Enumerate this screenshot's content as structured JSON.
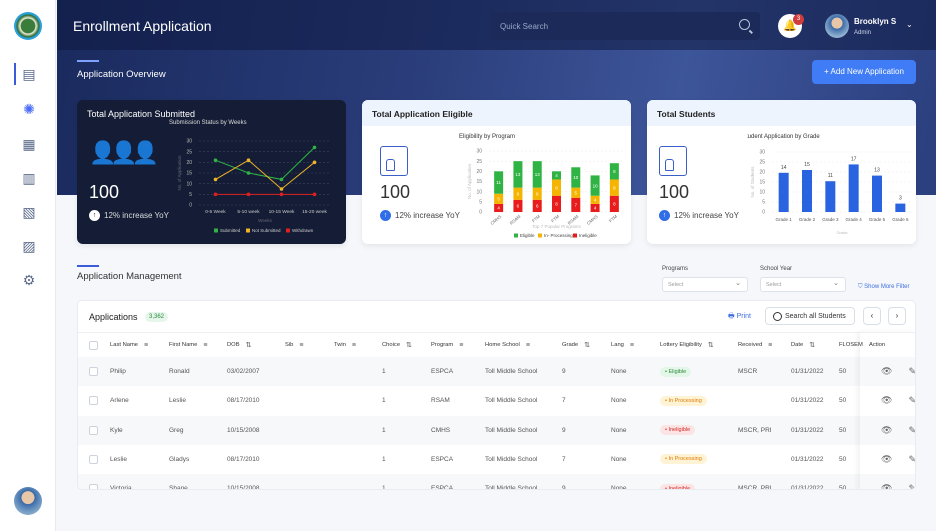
{
  "header": {
    "title": "Enrollment Application",
    "search_placeholder": "Quick Search",
    "notifications": "3",
    "user_name": "Brooklyn S",
    "user_role": "Admin"
  },
  "sidebar": {
    "items": [
      {
        "icon": "dashboard-icon",
        "glyph": "▤"
      },
      {
        "icon": "sun-icon",
        "glyph": "✺"
      },
      {
        "icon": "calendar-icon",
        "glyph": "▦"
      },
      {
        "icon": "checklist-icon",
        "glyph": "▥"
      },
      {
        "icon": "document-user-icon",
        "glyph": "▧"
      },
      {
        "icon": "inbox-icon",
        "glyph": "▨"
      },
      {
        "icon": "gear-icon",
        "glyph": "⚙"
      }
    ]
  },
  "overview": {
    "title": "Application Overview",
    "add_button": "+ Add New Application"
  },
  "cards": [
    {
      "title": "Total Application Submitted",
      "value": "100",
      "increase": "12% increase YoY"
    },
    {
      "title": "Total Application Eligible",
      "value": "100",
      "increase": "12% increase YoY"
    },
    {
      "title": "Total Students",
      "value": "100",
      "increase": "12% increase YoY"
    }
  ],
  "chart_data": [
    {
      "type": "line",
      "title": "Submission Status by Weeks",
      "xlabel": "Weeks",
      "ylabel": "No. of Application",
      "ylim": [
        0,
        30
      ],
      "yticks": [
        0,
        5,
        10,
        15,
        20,
        25,
        30
      ],
      "categories": [
        "0-5 Week",
        "5-10 week",
        "10-15 Week",
        "15-20 week"
      ],
      "series": [
        {
          "name": "Submitted",
          "color": "#2fb344",
          "values": [
            21,
            15,
            12,
            27
          ]
        },
        {
          "name": "Not Submitted",
          "color": "#f0b429",
          "values": [
            12,
            21,
            7.5,
            20
          ]
        },
        {
          "name": "Withdrawn",
          "color": "#e02020",
          "values": [
            5,
            5,
            5,
            5
          ]
        }
      ],
      "legend": "bottom"
    },
    {
      "type": "bar",
      "stacked": true,
      "title": "Eligibility by Program",
      "xlabel": "Top 7 Popular Programs",
      "ylabel": "No. of Application",
      "ylim": [
        0,
        30
      ],
      "yticks": [
        0,
        5,
        10,
        15,
        20,
        25,
        30
      ],
      "categories": [
        "CMHS",
        "RSAM",
        "FTM",
        "FTM",
        "RSAM",
        "CMHS",
        "FTM"
      ],
      "series": [
        {
          "name": "Ineligible",
          "color": "#e81c1c",
          "values": [
            4,
            6,
            6,
            8,
            7,
            4,
            8
          ]
        },
        {
          "name": "In- Processing",
          "color": "#f5b400",
          "values": [
            5,
            6,
            6,
            8,
            5,
            4,
            8
          ]
        },
        {
          "name": "Eligible",
          "color": "#2fb344",
          "values": [
            11,
            13,
            13,
            4,
            10,
            10,
            8
          ]
        }
      ],
      "legend": "bottom"
    },
    {
      "type": "bar",
      "title": "Student Application by Grade",
      "xlabel": "Grade",
      "ylabel": "No. of Students",
      "ylim": [
        0,
        30
      ],
      "yticks": [
        0,
        5,
        10,
        15,
        20,
        25,
        30
      ],
      "categories": [
        "Grade 1",
        "Grade 2",
        "Grade 3",
        "Grade 4",
        "Grade 5",
        "Grade 6"
      ],
      "values": [
        14,
        15,
        11,
        17,
        13,
        3
      ],
      "color": "#2a63e0"
    }
  ],
  "management": {
    "title": "Application Management",
    "programs_label": "Programs",
    "programs_value": "Select",
    "year_label": "School Year",
    "year_value": "Select",
    "more_filter": "Show More Filter"
  },
  "table": {
    "title": "Applications",
    "count": "3,362",
    "print": "Print",
    "search": "Search all Students",
    "prev": "‹",
    "next": "›",
    "columns": [
      {
        "label": "Last Name",
        "sym": "≡"
      },
      {
        "label": "First Name",
        "sym": "≡"
      },
      {
        "label": "DOB",
        "sym": "⇅"
      },
      {
        "label": "Sib",
        "sym": "≡"
      },
      {
        "label": "Twin",
        "sym": "≡"
      },
      {
        "label": "Choice",
        "sym": "⇅"
      },
      {
        "label": "Program",
        "sym": "≡"
      },
      {
        "label": "Home School",
        "sym": "≡"
      },
      {
        "label": "Grade",
        "sym": "⇅"
      },
      {
        "label": "Lang",
        "sym": "≡"
      },
      {
        "label": "Lottery Eligibility",
        "sym": "⇅"
      },
      {
        "label": "Received",
        "sym": "≡"
      },
      {
        "label": "Date",
        "sym": "⇅"
      },
      {
        "label": "FLOSEM",
        "sym": ""
      },
      {
        "label": "Action",
        "sym": ""
      }
    ],
    "rows": [
      [
        "Philip",
        "Ronald",
        "03/02/2007",
        "",
        "",
        "1",
        "ESPCA",
        "Toll Middle School",
        "9",
        "None",
        "Eligible",
        "MSCR",
        "01/31/2022",
        "50"
      ],
      [
        "Arlene",
        "Leslie",
        "08/17/2010",
        "",
        "",
        "1",
        "RSAM",
        "Toll Middle School",
        "7",
        "None",
        "In Processing",
        "",
        "01/31/2022",
        "50"
      ],
      [
        "Kyle",
        "Greg",
        "10/15/2008",
        "",
        "",
        "1",
        "CMHS",
        "Toll Middle School",
        "9",
        "None",
        "Ineligible",
        "MSCR, PRI",
        "01/31/2022",
        "50"
      ],
      [
        "Leslie",
        "Gladys",
        "08/17/2010",
        "",
        "",
        "1",
        "ESPCA",
        "Toll Middle School",
        "7",
        "None",
        "In Processing",
        "",
        "01/31/2022",
        "50"
      ],
      [
        "Victoria",
        "Shane",
        "10/15/2008",
        "",
        "",
        "1",
        "ESPCA",
        "Toll Middle School",
        "9",
        "None",
        "Ineligible",
        "MSCR, PRI",
        "01/31/2022",
        "50"
      ]
    ],
    "status_colors": {
      "Eligible": [
        "#e3f7e8",
        "#2b8a3e"
      ],
      "In Processing": [
        "#fff3d6",
        "#e07b00"
      ],
      "Ineligible": [
        "#fde4e4",
        "#d42a2a"
      ]
    }
  }
}
